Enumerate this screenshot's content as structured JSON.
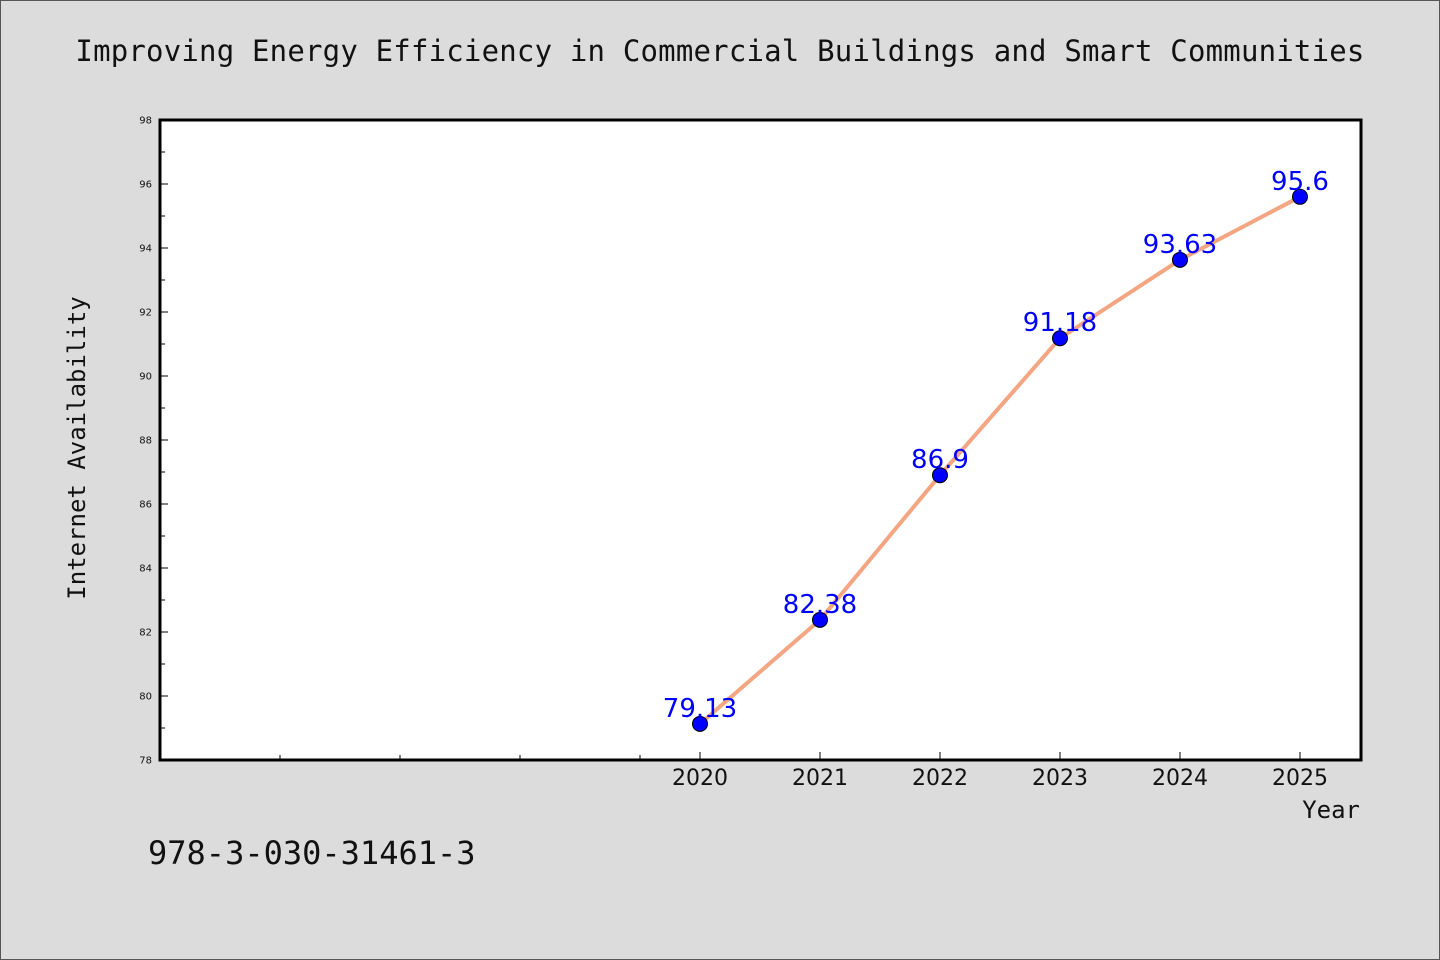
{
  "chart_data": {
    "type": "line",
    "title": "Improving Energy Efficiency in Commercial Buildings and Smart Communities",
    "xlabel": "Year",
    "ylabel": "Internet Availability",
    "x": [
      2020,
      2021,
      2022,
      2023,
      2024,
      2025
    ],
    "x_tick_labels": [
      "2020",
      "2021",
      "2022",
      "2023",
      "2024",
      "2025"
    ],
    "series": [
      {
        "values": [
          79.13,
          82.38,
          86.9,
          91.18,
          93.63,
          95.6
        ],
        "point_labels": [
          "79.13",
          "82.38",
          "86.9",
          "91.18",
          "93.63",
          "95.6"
        ]
      }
    ],
    "ylim": [
      78,
      98
    ],
    "y_ticks": [
      78,
      80,
      82,
      84,
      86,
      88,
      90,
      92,
      94,
      96,
      98
    ],
    "grid": false,
    "legend": false,
    "colors": {
      "line": "#f4a582",
      "marker": "#0000ff",
      "label": "#0000ff",
      "background": "#dcdcdc",
      "plot_area": "#ffffff"
    }
  },
  "footer": {
    "isbn": "978-3-030-31461-3"
  }
}
